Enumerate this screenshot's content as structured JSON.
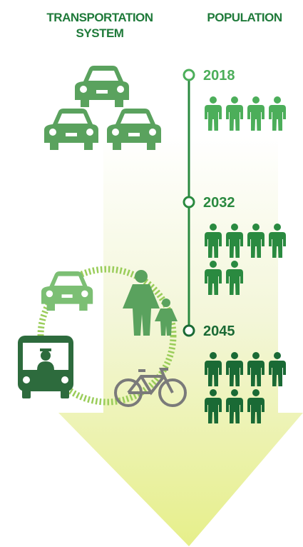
{
  "headers": {
    "transportation": [
      "TRANSPORTATION",
      "SYSTEM"
    ],
    "population": "POPULATION"
  },
  "timeline": [
    {
      "year": "2018",
      "people": 4
    },
    {
      "year": "2032",
      "people": 6
    },
    {
      "year": "2045",
      "people": 7
    }
  ]
}
